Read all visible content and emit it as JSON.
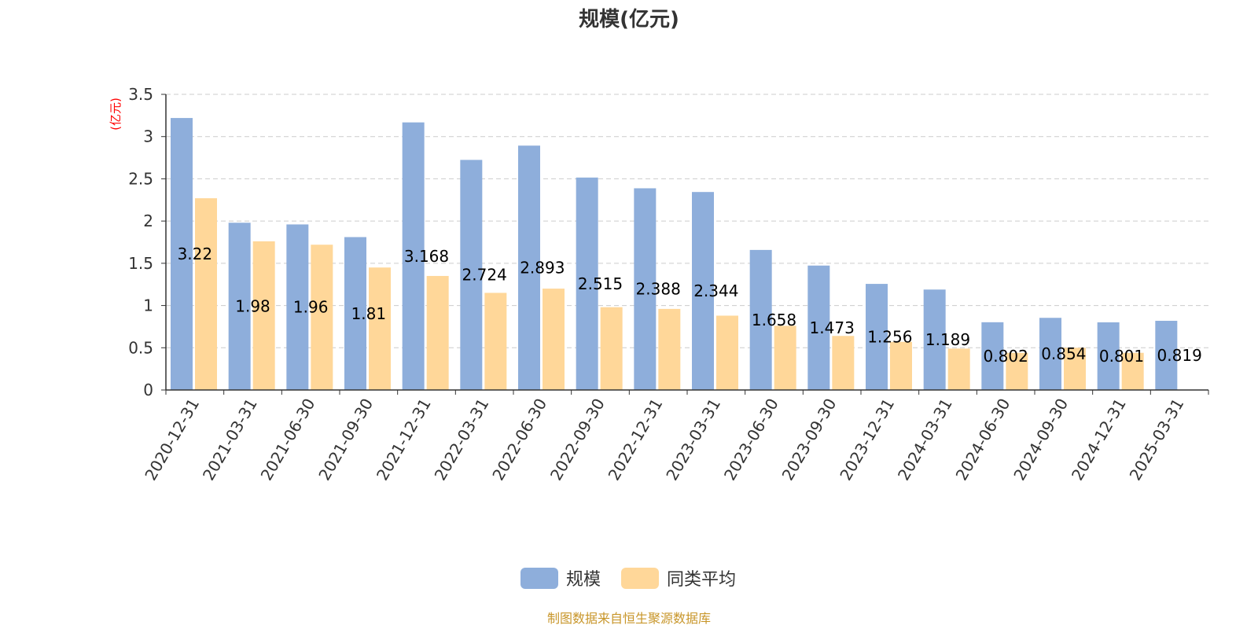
{
  "chart_data": {
    "type": "bar",
    "title": "规模(亿元)",
    "ylabel": "(亿元)",
    "xlabel": "",
    "ylim": [
      0,
      3.5
    ],
    "yticks": [
      "0",
      "0.5",
      "1",
      "1.5",
      "2",
      "2.5",
      "3",
      "3.5"
    ],
    "grid": true,
    "legend_position": "bottom",
    "categories": [
      "2020-12-31",
      "2021-03-31",
      "2021-06-30",
      "2021-09-30",
      "2021-12-31",
      "2022-03-31",
      "2022-06-30",
      "2022-09-30",
      "2022-12-31",
      "2023-03-31",
      "2023-06-30",
      "2023-09-30",
      "2023-12-31",
      "2024-03-31",
      "2024-06-30",
      "2024-09-30",
      "2024-12-31",
      "2025-03-31"
    ],
    "series": [
      {
        "name": "规模",
        "color": "#8eaedb",
        "values": [
          3.22,
          1.98,
          1.96,
          1.81,
          3.168,
          2.724,
          2.893,
          2.515,
          2.388,
          2.344,
          1.658,
          1.473,
          1.256,
          1.189,
          0.802,
          0.854,
          0.801,
          0.819
        ],
        "labels": [
          "3.22",
          "1.98",
          "1.96",
          "1.81",
          "3.168",
          "2.724",
          "2.893",
          "2.515",
          "2.388",
          "2.344",
          "1.658",
          "1.473",
          "1.256",
          "1.189",
          "0.802",
          "0.854",
          "0.801",
          "0.819"
        ]
      },
      {
        "name": "同类平均",
        "color": "#ffd799",
        "values": [
          2.27,
          1.76,
          1.72,
          1.45,
          1.35,
          1.15,
          1.2,
          0.98,
          0.96,
          0.88,
          0.76,
          0.64,
          0.57,
          0.49,
          0.44,
          0.5,
          0.44,
          null
        ]
      }
    ],
    "source": "制图数据来自恒生聚源数据库"
  }
}
